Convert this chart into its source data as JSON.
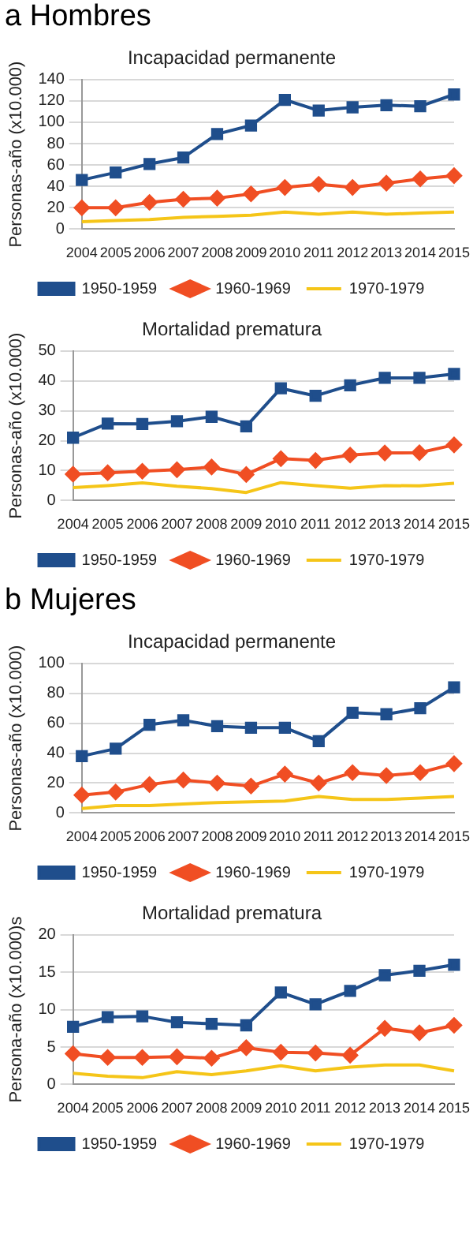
{
  "chart_data": [
    {
      "type": "line",
      "annotations": [
        "a Hombres"
      ],
      "title": "Incapacidad permanente",
      "ylabel": "Personas-año (x10.000)",
      "categories": [
        "2004",
        "2005",
        "2006",
        "2007",
        "2008",
        "2009",
        "2010",
        "2011",
        "2012",
        "2013",
        "2014",
        "2015"
      ],
      "ylim": [
        0,
        140
      ],
      "yticks": [
        0,
        20,
        40,
        60,
        80,
        100,
        120,
        140
      ],
      "grid": "y",
      "legend": "bottom",
      "series": [
        {
          "name": "1950-1959",
          "color": "#1f4e8c",
          "marker": "square",
          "values": [
            46,
            53,
            61,
            67,
            89,
            97,
            121,
            111,
            114,
            116,
            115,
            126
          ]
        },
        {
          "name": "1960-1969",
          "color": "#f04e23",
          "marker": "diamond",
          "values": [
            20,
            20,
            25,
            28,
            29,
            33,
            39,
            42,
            39,
            43,
            47,
            50
          ]
        },
        {
          "name": "1970-1979",
          "color": "#f5c518",
          "marker": "none",
          "values": [
            7,
            8,
            9,
            11,
            12,
            13,
            16,
            14,
            16,
            14,
            15,
            16
          ]
        }
      ]
    },
    {
      "type": "line",
      "title": "Mortalidad prematura",
      "ylabel": "Personas-año (x10.000)",
      "categories": [
        "2004",
        "2005",
        "2006",
        "2007",
        "2008",
        "2009",
        "2010",
        "2011",
        "2012",
        "2013",
        "2014",
        "2015"
      ],
      "ylim": [
        0,
        50
      ],
      "yticks": [
        0,
        10,
        20,
        30,
        40,
        50
      ],
      "grid": "y",
      "legend": "bottom",
      "series": [
        {
          "name": "1950-1959",
          "color": "#1f4e8c",
          "marker": "square",
          "values": [
            21,
            25.7,
            25.6,
            26.5,
            28,
            24.8,
            37.5,
            35,
            38.5,
            41,
            41,
            42.3
          ]
        },
        {
          "name": "1960-1969",
          "color": "#f04e23",
          "marker": "diamond",
          "values": [
            8.8,
            9.3,
            9.8,
            10.3,
            11.2,
            8.7,
            14,
            13.4,
            15.2,
            15.9,
            16,
            18.6
          ]
        },
        {
          "name": "1970-1979",
          "color": "#f5c518",
          "marker": "none",
          "values": [
            4.3,
            5,
            5.9,
            4.8,
            4,
            2.7,
            6,
            5,
            4.1,
            5,
            4.9,
            5.8
          ]
        }
      ]
    },
    {
      "type": "line",
      "annotations": [
        "b Mujeres"
      ],
      "title": "Incapacidad permanente",
      "ylabel": "Personas-año (x10.000)",
      "categories": [
        "2004",
        "2005",
        "2006",
        "2007",
        "2008",
        "2009",
        "2010",
        "2011",
        "2012",
        "2013",
        "2014",
        "2015"
      ],
      "ylim": [
        0,
        100
      ],
      "yticks": [
        0,
        20,
        40,
        60,
        80,
        100
      ],
      "grid": "y",
      "legend": "bottom",
      "series": [
        {
          "name": "1950-1959",
          "color": "#1f4e8c",
          "marker": "square",
          "values": [
            38,
            43,
            59,
            62,
            58,
            57,
            57,
            48,
            67,
            66,
            70,
            84
          ]
        },
        {
          "name": "1960-1969",
          "color": "#f04e23",
          "marker": "diamond",
          "values": [
            12,
            14,
            19,
            22,
            20,
            18,
            26,
            20,
            27,
            25,
            27,
            33
          ]
        },
        {
          "name": "1970-1979",
          "color": "#f5c518",
          "marker": "none",
          "values": [
            3,
            5,
            5,
            6,
            7,
            7.5,
            8,
            11,
            9,
            9,
            10,
            11
          ]
        }
      ]
    },
    {
      "type": "line",
      "title": "Mortalidad prematura",
      "ylabel": "Persona-año (x10.000)s",
      "categories": [
        "2004",
        "2005",
        "2006",
        "2007",
        "2008",
        "2009",
        "2010",
        "2011",
        "2012",
        "2013",
        "2014",
        "2015"
      ],
      "ylim": [
        0,
        20
      ],
      "yticks": [
        0,
        5,
        10,
        15,
        20
      ],
      "grid": "y",
      "legend": "bottom",
      "series": [
        {
          "name": "1950-1959",
          "color": "#1f4e8c",
          "marker": "square",
          "values": [
            7.7,
            9,
            9.1,
            8.3,
            8.1,
            7.9,
            12.3,
            10.7,
            12.5,
            14.6,
            15.2,
            16
          ]
        },
        {
          "name": "1960-1969",
          "color": "#f04e23",
          "marker": "diamond",
          "values": [
            4.1,
            3.6,
            3.6,
            3.7,
            3.5,
            4.9,
            4.3,
            4.2,
            3.9,
            7.5,
            6.9,
            7.9
          ]
        },
        {
          "name": "1970-1979",
          "color": "#f5c518",
          "marker": "none",
          "values": [
            1.5,
            1.1,
            0.9,
            1.7,
            1.3,
            1.8,
            2.5,
            1.8,
            2.3,
            2.6,
            2.6,
            1.8
          ]
        }
      ]
    }
  ]
}
